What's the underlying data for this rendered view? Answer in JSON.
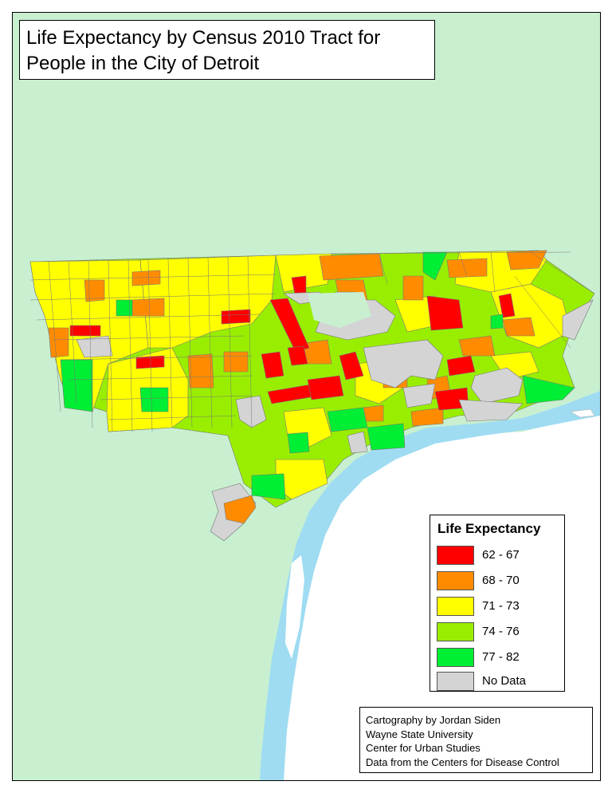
{
  "title": {
    "line1": "Life Expectancy by Census 2010 Tract for",
    "line2": "People in the City of Detroit"
  },
  "legend": {
    "title": "Life Expectancy",
    "items": [
      {
        "label": "62 - 67",
        "color": "#ff0000"
      },
      {
        "label": "68 - 70",
        "color": "#ff8c00"
      },
      {
        "label": "71 - 73",
        "color": "#ffff00"
      },
      {
        "label": "74 - 76",
        "color": "#99ee00"
      },
      {
        "label": "77 - 82",
        "color": "#00ee33"
      },
      {
        "label": "No Data",
        "color": "#d4d4d4"
      }
    ]
  },
  "credits": [
    "Cartography by Jordan Siden",
    "Wayne State University",
    "Center for Urban Studies",
    "Data from the Centers for Disease Control"
  ],
  "colors": {
    "background": "#c8f0d0",
    "water": "#9fdcf2",
    "canada": "#ffffff",
    "no_data": "#d4d4d4"
  }
}
